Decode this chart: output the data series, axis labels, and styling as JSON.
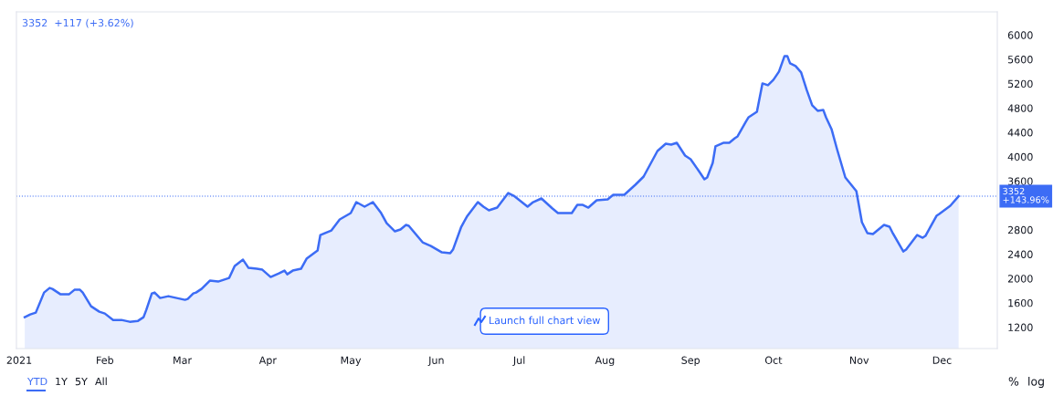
{
  "chart_data": {
    "type": "area",
    "x": [
      "2021-01-03",
      "2021-01-05",
      "2021-01-07",
      "2021-01-10",
      "2021-01-12",
      "2021-01-13",
      "2021-01-16",
      "2021-01-19",
      "2021-01-21",
      "2021-01-23",
      "2021-01-24",
      "2021-01-27",
      "2021-01-30",
      "2021-02-01",
      "2021-02-04",
      "2021-02-07",
      "2021-02-10",
      "2021-02-13",
      "2021-02-15",
      "2021-02-16",
      "2021-02-18",
      "2021-02-19",
      "2021-02-21",
      "2021-02-24",
      "2021-02-27",
      "2021-03-02",
      "2021-03-03",
      "2021-03-05",
      "2021-03-06",
      "2021-03-08",
      "2021-03-11",
      "2021-03-14",
      "2021-03-18",
      "2021-03-20",
      "2021-03-23",
      "2021-03-25",
      "2021-03-28",
      "2021-03-30",
      "2021-04-02",
      "2021-04-05",
      "2021-04-07",
      "2021-04-08",
      "2021-04-10",
      "2021-04-13",
      "2021-04-15",
      "2021-04-19",
      "2021-04-20",
      "2021-04-24",
      "2021-04-27",
      "2021-05-01",
      "2021-05-03",
      "2021-05-06",
      "2021-05-09",
      "2021-05-12",
      "2021-05-14",
      "2021-05-17",
      "2021-05-19",
      "2021-05-21",
      "2021-05-22",
      "2021-05-27",
      "2021-05-30",
      "2021-06-03",
      "2021-06-06",
      "2021-06-07",
      "2021-06-10",
      "2021-06-12",
      "2021-06-16",
      "2021-06-18",
      "2021-06-20",
      "2021-06-23",
      "2021-06-27",
      "2021-06-29",
      "2021-07-04",
      "2021-07-06",
      "2021-07-09",
      "2021-07-13",
      "2021-07-15",
      "2021-07-17",
      "2021-07-20",
      "2021-07-22",
      "2021-07-24",
      "2021-07-26",
      "2021-07-29",
      "2021-08-02",
      "2021-08-04",
      "2021-08-08",
      "2021-08-12",
      "2021-08-15",
      "2021-08-20",
      "2021-08-23",
      "2021-08-25",
      "2021-08-27",
      "2021-08-30",
      "2021-09-01",
      "2021-09-04",
      "2021-09-06",
      "2021-09-07",
      "2021-09-09",
      "2021-09-10",
      "2021-09-13",
      "2021-09-15",
      "2021-09-17",
      "2021-09-18",
      "2021-09-21",
      "2021-09-22",
      "2021-09-25",
      "2021-09-27",
      "2021-09-29",
      "2021-10-01",
      "2021-10-03",
      "2021-10-05",
      "2021-10-06",
      "2021-10-07",
      "2021-10-09",
      "2021-10-11",
      "2021-10-13",
      "2021-10-15",
      "2021-10-17",
      "2021-10-19",
      "2021-10-20",
      "2021-10-22",
      "2021-10-24",
      "2021-10-27",
      "2021-10-31",
      "2021-11-02",
      "2021-11-04",
      "2021-11-06",
      "2021-11-10",
      "2021-11-12",
      "2021-11-13",
      "2021-11-17",
      "2021-11-18",
      "2021-11-21",
      "2021-11-22",
      "2021-11-24",
      "2021-11-25",
      "2021-11-29",
      "2021-11-30",
      "2021-12-04",
      "2021-12-07"
    ],
    "series": [
      {
        "color": "#3c6cf5",
        "values": [
          1365,
          1410,
          1440,
          1770,
          1845,
          1830,
          1740,
          1740,
          1815,
          1815,
          1770,
          1545,
          1455,
          1425,
          1320,
          1320,
          1290,
          1305,
          1365,
          1485,
          1755,
          1770,
          1680,
          1710,
          1680,
          1650,
          1665,
          1755,
          1770,
          1830,
          1965,
          1950,
          2010,
          2205,
          2310,
          2175,
          2160,
          2145,
          2025,
          2085,
          2130,
          2070,
          2130,
          2160,
          2325,
          2460,
          2715,
          2790,
          2970,
          3075,
          3255,
          3180,
          3255,
          3075,
          2910,
          2775,
          2805,
          2880,
          2865,
          2595,
          2535,
          2430,
          2415,
          2475,
          2850,
          3015,
          3255,
          3180,
          3120,
          3165,
          3405,
          3360,
          3180,
          3255,
          3315,
          3150,
          3075,
          3075,
          3075,
          3210,
          3210,
          3165,
          3285,
          3300,
          3375,
          3375,
          3540,
          3675,
          4095,
          4215,
          4200,
          4230,
          4020,
          3960,
          3765,
          3630,
          3660,
          3900,
          4170,
          4230,
          4230,
          4305,
          4335,
          4575,
          4650,
          4740,
          5205,
          5175,
          5265,
          5400,
          5655,
          5655,
          5535,
          5490,
          5385,
          5100,
          4845,
          4755,
          4770,
          4650,
          4455,
          4125,
          3660,
          3435,
          2925,
          2745,
          2730,
          2880,
          2850,
          2760,
          2445,
          2475,
          2655,
          2715,
          2670,
          2700,
          3030,
          3060,
          3195,
          3352
        ]
      }
    ],
    "xlim": [
      "2020-12-31",
      "2021-12-21"
    ],
    "xticks": [
      {
        "value": "2021-01-01",
        "label": "2021"
      },
      {
        "value": "2021-02-01",
        "label": "Feb"
      },
      {
        "value": "2021-03-01",
        "label": "Mar"
      },
      {
        "value": "2021-04-01",
        "label": "Apr"
      },
      {
        "value": "2021-05-01",
        "label": "May"
      },
      {
        "value": "2021-06-01",
        "label": "Jun"
      },
      {
        "value": "2021-07-01",
        "label": "Jul"
      },
      {
        "value": "2021-08-01",
        "label": "Aug"
      },
      {
        "value": "2021-09-01",
        "label": "Sep"
      },
      {
        "value": "2021-10-01",
        "label": "Oct"
      },
      {
        "value": "2021-11-01",
        "label": "Nov"
      },
      {
        "value": "2021-12-01",
        "label": "Dec"
      }
    ],
    "ylim": [
      850,
      6380
    ],
    "yticks": [
      1200,
      1600,
      2000,
      2400,
      2800,
      3600,
      4000,
      4400,
      4800,
      5200,
      5600,
      6000
    ],
    "grid": false,
    "ref_lines": [
      {
        "axis": "y",
        "value": 3352,
        "label": "3352\n+143.96%",
        "color": "#3c6cf5",
        "line_style": "dotted"
      }
    ],
    "annotations": [
      "3352  +117 (+3.62%)",
      "YTD",
      "1Y",
      "5Y",
      "All",
      "%",
      "log",
      "Launch full chart view"
    ]
  }
}
